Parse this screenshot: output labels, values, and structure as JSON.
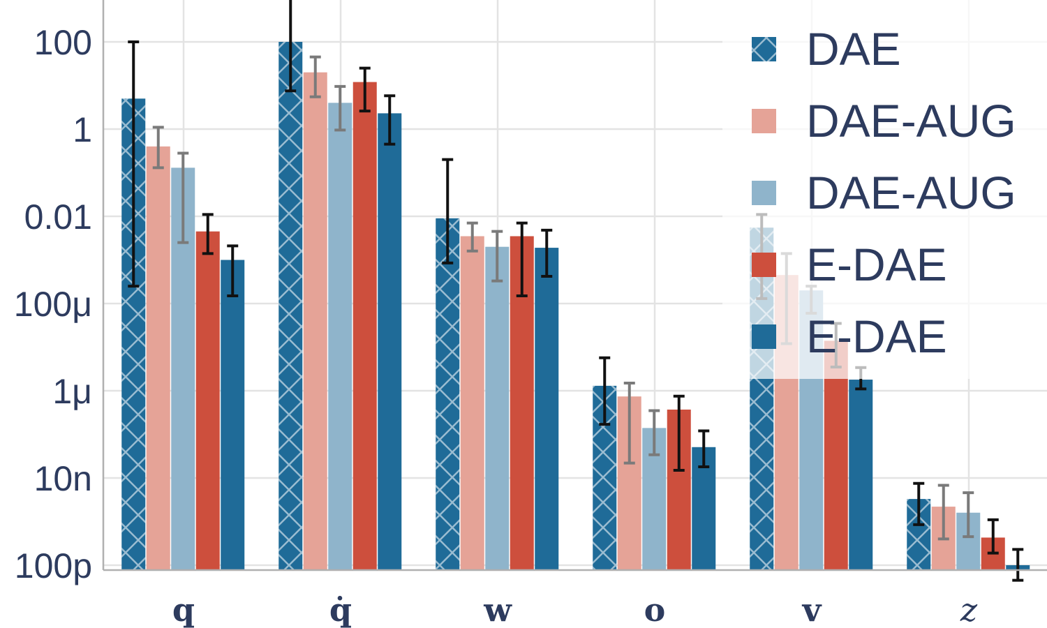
{
  "chart_data": {
    "type": "bar",
    "yscale": "log",
    "ylim": [
      1e-10,
      1000
    ],
    "grid": true,
    "legend_position": "top-right",
    "title": "",
    "xlabel": "",
    "ylabel": "",
    "categories": [
      "q",
      "q̇",
      "w",
      "o",
      "v",
      "z"
    ],
    "yticks": [
      {
        "value": 100,
        "label": "100"
      },
      {
        "value": 1,
        "label": "1"
      },
      {
        "value": 0.01,
        "label": "0.01"
      },
      {
        "value": 0.0001,
        "label": "100μ"
      },
      {
        "value": 1e-06,
        "label": "1μ"
      },
      {
        "value": 1e-08,
        "label": "10n"
      },
      {
        "value": 1e-10,
        "label": "100p"
      }
    ],
    "series": [
      {
        "name": "DAE",
        "color": "#1f6b98",
        "pattern": "crosshatch",
        "values": [
          5,
          100,
          0.009,
          1.3e-06,
          0.0055,
          3.3e-09
        ],
        "err_low": [
          0.00025,
          7.5,
          0.00085,
          1.7e-07,
          0.00013,
          8.5e-10
        ],
        "err_high": [
          100,
          2000,
          0.2,
          5.7e-06,
          0.011,
          7.5e-09
        ],
        "err_color": "#111111"
      },
      {
        "name": "DAE-AUG",
        "color": "#e5a397",
        "values": [
          0.4,
          20,
          0.0035,
          7.4e-07,
          0.00045,
          2.2e-09
        ],
        "err_low": [
          0.13,
          5.5,
          0.0016,
          2.2e-08,
          1.2e-05,
          4e-10
        ],
        "err_high": [
          1.1,
          45,
          0.007,
          1.5e-06,
          0.0014,
          6.8e-09
        ],
        "err_color": "#7a7a7a"
      },
      {
        "name": "DAE-AUG",
        "color": "#8fb4cb",
        "values": [
          0.13,
          4,
          0.002,
          1.4e-07,
          0.0002,
          1.6e-09
        ],
        "err_low": [
          0.0025,
          0.95,
          0.00033,
          3.4e-08,
          6e-05,
          4.5e-10
        ],
        "err_high": [
          0.28,
          9.5,
          0.0045,
          3.5e-07,
          0.00025,
          4.6e-09
        ],
        "err_color": "#7a7a7a"
      },
      {
        "name": "E-DAE",
        "color": "#cd4f3d",
        "values": [
          0.0045,
          12,
          0.0035,
          3.7e-07,
          1.4e-05,
          4.3e-10
        ],
        "err_low": [
          0.0014,
          2.6,
          0.00015,
          1.5e-08,
          3.5e-06,
          1.9e-10
        ],
        "err_high": [
          0.011,
          25,
          0.007,
          7.5e-07,
          3.5e-05,
          1.1e-09
        ],
        "err_color": "#111111"
      },
      {
        "name": "E-DAE",
        "color": "#1f6b98",
        "values": [
          0.001,
          2.3,
          0.0019,
          5.1e-08,
          1.8e-06,
          1e-10
        ],
        "err_low": [
          0.00015,
          0.45,
          0.00042,
          1.8e-08,
          1.1e-06,
          4.5e-11
        ],
        "err_high": [
          0.0021,
          5.8,
          0.0048,
          1.2e-07,
          3.4e-06,
          2.3e-10
        ],
        "err_color": "#111111"
      }
    ]
  }
}
